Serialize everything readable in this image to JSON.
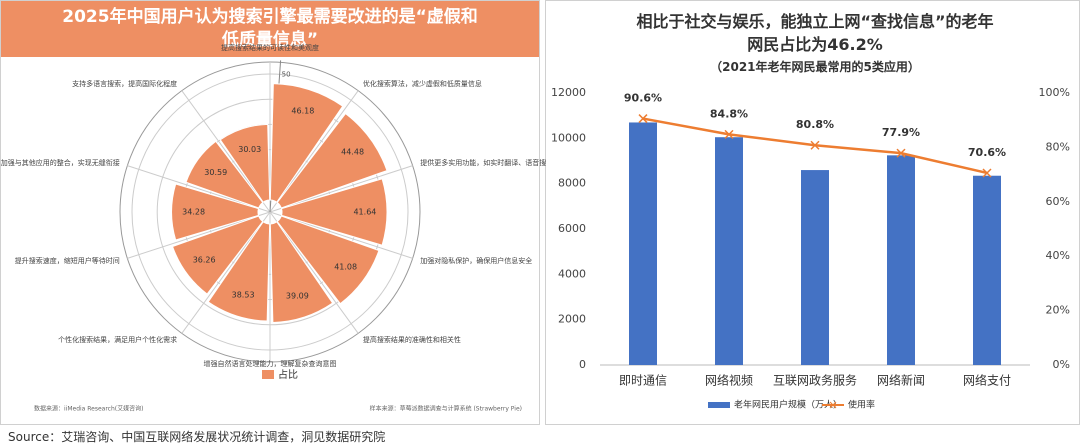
{
  "chart_data": [
    {
      "type": "polar-bar",
      "title": "2025年中国用户认为搜索引擎最需要改进的是“虚假和低质量信息”",
      "categories": [
        "优化搜索算法，减少虚假和低质量信息",
        "提供更多实用功能，如实时翻译、语音搜",
        "加强对隐私保护，确保用户信息安全",
        "提高搜索结果的准确性和相关性",
        "增强自然语言处理能力，理解复杂查询意图",
        "个性化搜索结果，满足用户个性化需求",
        "提升搜索速度，缩短用户等待时间",
        "加强与其他应用的整合，实现无缝衔接",
        "支持多语言搜索，提高国际化程度",
        "提高搜索结果的可读性和美观度"
      ],
      "series": [
        {
          "name": "占比",
          "color": "#ee8f63",
          "values": [
            46.18,
            44.48,
            41.64,
            41.08,
            39.09,
            38.53,
            36.26,
            34.28,
            30.59,
            30.03
          ]
        }
      ],
      "rlim": [
        0,
        50
      ],
      "rticks": [
        10,
        20,
        30,
        40,
        50
      ],
      "note_left": "数据来源：iiMedia Research(艾媒咨询)",
      "note_right": "样本来源：草莓派数据调查与计算系统 (Strawberry Pie)"
    },
    {
      "type": "bar-line",
      "title": "相比于社交与娱乐，能独立上网“查找信息”的老年网民占比为46.2%",
      "subtitle": "（2021年老年网民最常用的5类应用）",
      "categories": [
        "即时通信",
        "网络视频",
        "互联网政务服务",
        "网络新闻",
        "网络支付"
      ],
      "series": [
        {
          "name": "老年网民用户规模（万人）",
          "color": "#4472c4",
          "values": [
            10700,
            10050,
            8600,
            9250,
            8350
          ]
        },
        {
          "name": "使用率",
          "color": "#ed7d31",
          "axis": "y2",
          "values": [
            90.6,
            84.8,
            80.8,
            77.9,
            70.6
          ],
          "value_labels": [
            "90.6%",
            "84.8%",
            "80.8%",
            "77.9%",
            "70.6%"
          ]
        }
      ],
      "ylim": [
        0,
        12000
      ],
      "yticks": [
        0,
        2000,
        4000,
        6000,
        8000,
        10000,
        12000
      ],
      "y2lim": [
        0,
        100
      ],
      "y2ticks": [
        {
          "value": 0,
          "label": "0%"
        },
        {
          "value": 20,
          "label": "20%"
        },
        {
          "value": 40,
          "label": "40%"
        },
        {
          "value": 60,
          "label": "60%"
        },
        {
          "value": 80,
          "label": "80%"
        },
        {
          "value": 100,
          "label": "100%"
        }
      ],
      "grid": false,
      "legend": "bottom"
    }
  ],
  "source": "Source：艾瑞咨询、中国互联网络发展状况统计调查，洞见数据研究院"
}
